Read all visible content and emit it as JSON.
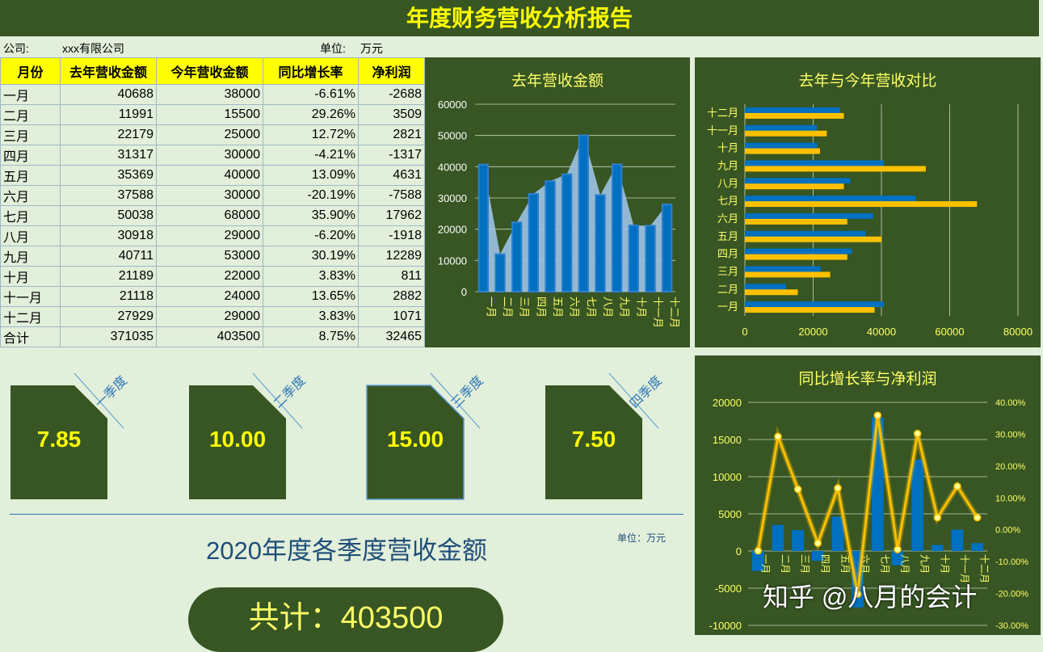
{
  "title": "年度财务营收分析报告",
  "info": {
    "company_label": "公司:",
    "company_value": "xxx有限公司",
    "unit_label": "单位:",
    "unit_value": "万元"
  },
  "table": {
    "headers": [
      "月份",
      "去年营收金额",
      "今年营收金额",
      "同比增长率",
      "净利润"
    ],
    "rows": [
      [
        "一月",
        "40688",
        "38000",
        "-6.61%",
        "-2688"
      ],
      [
        "二月",
        "11991",
        "15500",
        "29.26%",
        "3509"
      ],
      [
        "三月",
        "22179",
        "25000",
        "12.72%",
        "2821"
      ],
      [
        "四月",
        "31317",
        "30000",
        "-4.21%",
        "-1317"
      ],
      [
        "五月",
        "35369",
        "40000",
        "13.09%",
        "4631"
      ],
      [
        "六月",
        "37588",
        "30000",
        "-20.19%",
        "-7588"
      ],
      [
        "七月",
        "50038",
        "68000",
        "35.90%",
        "17962"
      ],
      [
        "八月",
        "30918",
        "29000",
        "-6.20%",
        "-1918"
      ],
      [
        "九月",
        "40711",
        "53000",
        "30.19%",
        "12289"
      ],
      [
        "十月",
        "21189",
        "22000",
        "3.83%",
        "811"
      ],
      [
        "十一月",
        "21118",
        "24000",
        "13.65%",
        "2882"
      ],
      [
        "十二月",
        "27929",
        "29000",
        "3.83%",
        "1071"
      ],
      [
        "合计",
        "371035",
        "403500",
        "8.75%",
        "32465"
      ]
    ]
  },
  "quarters": [
    {
      "label": "一季度",
      "value": "7.85"
    },
    {
      "label": "二季度",
      "value": "10.00"
    },
    {
      "label": "三季度",
      "value": "15.00"
    },
    {
      "label": "四季度",
      "value": "7.50"
    }
  ],
  "quarter_section": {
    "title": "2020年度各季度营收金额",
    "unit": "单位：万元",
    "total": "共计：403500"
  },
  "watermark": "知乎 @八月的会计",
  "colors": {
    "dark_green": "#375623",
    "light_green": "#e2efda",
    "yellow": "#ffff00",
    "blue": "#0070c0",
    "orange": "#ffc000"
  },
  "chart_data": [
    {
      "type": "bar",
      "title": "去年营收金额",
      "categories": [
        "一月",
        "二月",
        "三月",
        "四月",
        "五月",
        "六月",
        "七月",
        "八月",
        "九月",
        "十月",
        "十一月",
        "十二月"
      ],
      "values": [
        40688,
        11991,
        22179,
        31317,
        35369,
        37588,
        50038,
        30918,
        40711,
        21189,
        21118,
        27929
      ],
      "ylim": [
        0,
        60000
      ],
      "yticks": [
        "0",
        "10000",
        "20000",
        "30000",
        "40000",
        "50000",
        "60000"
      ]
    },
    {
      "type": "bar",
      "orientation": "horizontal",
      "title": "去年与今年营收对比",
      "categories": [
        "一月",
        "二月",
        "三月",
        "四月",
        "五月",
        "六月",
        "七月",
        "八月",
        "九月",
        "十月",
        "十一月",
        "十二月"
      ],
      "series": [
        {
          "values": [
            40688,
            11991,
            22179,
            31317,
            35369,
            37588,
            50038,
            30918,
            40711,
            21189,
            21118,
            27929
          ]
        },
        {
          "values": [
            38000,
            15500,
            25000,
            30000,
            40000,
            30000,
            68000,
            29000,
            53000,
            22000,
            24000,
            29000
          ]
        }
      ],
      "xlim": [
        0,
        80000
      ],
      "xticks": [
        "0",
        "20000",
        "40000",
        "60000",
        "80000"
      ]
    },
    {
      "type": "bar",
      "title": "同比增长率与净利润",
      "categories": [
        "一月",
        "二月",
        "三月",
        "四月",
        "五月",
        "六月",
        "七月",
        "八月",
        "九月",
        "十月",
        "十一月",
        "十二月"
      ],
      "series": [
        {
          "type": "bar",
          "values": [
            -2688,
            3509,
            2821,
            -1317,
            4631,
            -7588,
            17962,
            -1918,
            12289,
            811,
            2882,
            1071
          ]
        },
        {
          "type": "line",
          "values": [
            -6.61,
            29.26,
            12.72,
            -4.21,
            13.09,
            -20.19,
            35.9,
            -6.2,
            30.19,
            3.83,
            13.65,
            3.83
          ]
        }
      ],
      "ylim": [
        -10000,
        20000
      ],
      "y2lim": [
        -30,
        40
      ],
      "yticks": [
        "-10000",
        "-5000",
        "0",
        "5000",
        "10000",
        "15000",
        "20000"
      ],
      "y2ticks": [
        "-30.00%",
        "-20.00%",
        "-10.00%",
        "0.00%",
        "10.00%",
        "20.00%",
        "30.00%",
        "40.00%"
      ]
    }
  ]
}
